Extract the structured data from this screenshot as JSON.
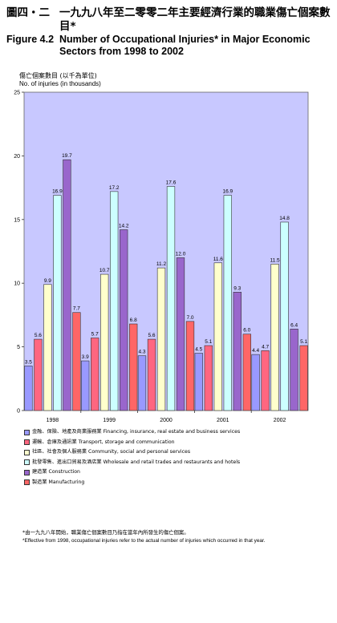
{
  "header": {
    "figure_zh": "圖四・二",
    "title_zh": "一九九八年至二零零二年主要經濟行業的職業傷亡個案數目*",
    "figure_en": "Figure 4.2",
    "title_en": "Number of Occupational Injuries* in Major Economic Sectors from 1998 to 2002"
  },
  "footnote": {
    "zh": "*由一九九八年開始，職業傷亡個案數目乃指在當年內所發生的傷亡個案。",
    "en": "*Effective from 1998, occupational injuries refer to the actual number of injuries which occurred in that year."
  },
  "chart_data": {
    "type": "bar",
    "ylabel_zh": "傷亡個案數目 (以千為單位)",
    "ylabel": "No. of injuries (in thousands)",
    "ylim": [
      0,
      25
    ],
    "yticks": [
      0,
      5,
      10,
      15,
      20,
      25
    ],
    "grid": false,
    "legend_position": "bottom",
    "plot_background": "#c8c8ff",
    "categories": [
      "1998",
      "1999",
      "2000",
      "2001",
      "2002"
    ],
    "series": [
      {
        "name": "金融、保險、地產及商業服務業 Financing, insurance, real estate and business services",
        "color": "#9999ff",
        "values": [
          3.5,
          3.9,
          4.3,
          4.5,
          4.4
        ]
      },
      {
        "name": "運輸、倉庫及通訊業 Transport, storage and communication",
        "color": "#ff6680",
        "values": [
          5.6,
          5.7,
          5.6,
          5.1,
          4.7
        ]
      },
      {
        "name": "社區、社會及個人服務業 Community, social and personal services",
        "color": "#ffffcc",
        "values": [
          9.9,
          10.7,
          11.2,
          11.6,
          11.5
        ]
      },
      {
        "name": "批發零售、進出口貿易及酒店業 Wholesale and retail trades and restaurants and hotels",
        "color": "#ccffff",
        "values": [
          16.9,
          17.2,
          17.6,
          16.9,
          14.8
        ]
      },
      {
        "name": "建造業 Construction",
        "color": "#9966cc",
        "values": [
          19.7,
          14.2,
          12.0,
          9.3,
          6.4
        ]
      },
      {
        "name": "製造業 Manufacturing",
        "color": "#ff6666",
        "values": [
          7.7,
          6.8,
          7.0,
          6.0,
          5.1
        ]
      }
    ]
  }
}
